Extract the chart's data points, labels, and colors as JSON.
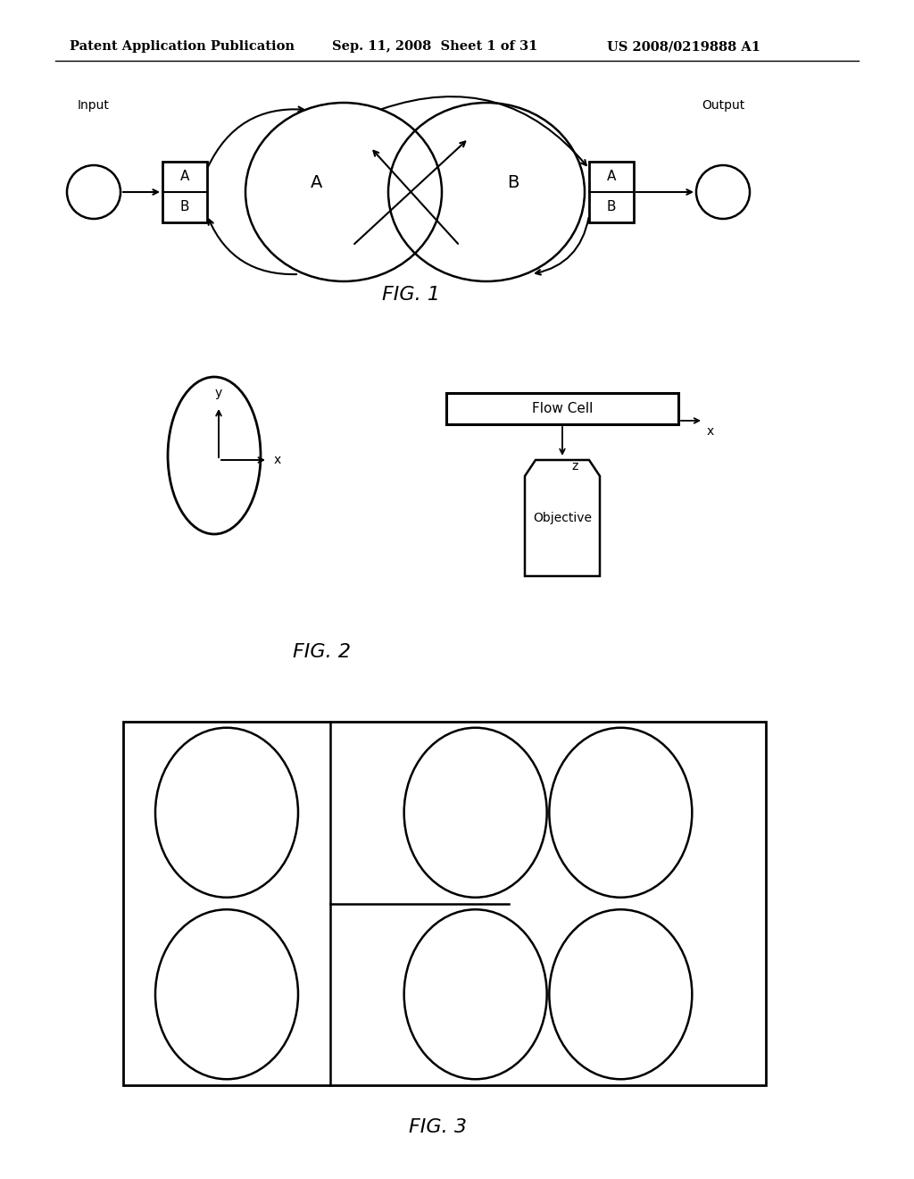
{
  "bg_color": "#ffffff",
  "header_text": "Patent Application Publication",
  "header_date": "Sep. 11, 2008  Sheet 1 of 31",
  "header_patent": "US 2008/0219888 A1",
  "fig1_label": "FIG. 1",
  "fig2_label": "FIG. 2",
  "fig3_label": "FIG. 3",
  "line_color": "#000000"
}
